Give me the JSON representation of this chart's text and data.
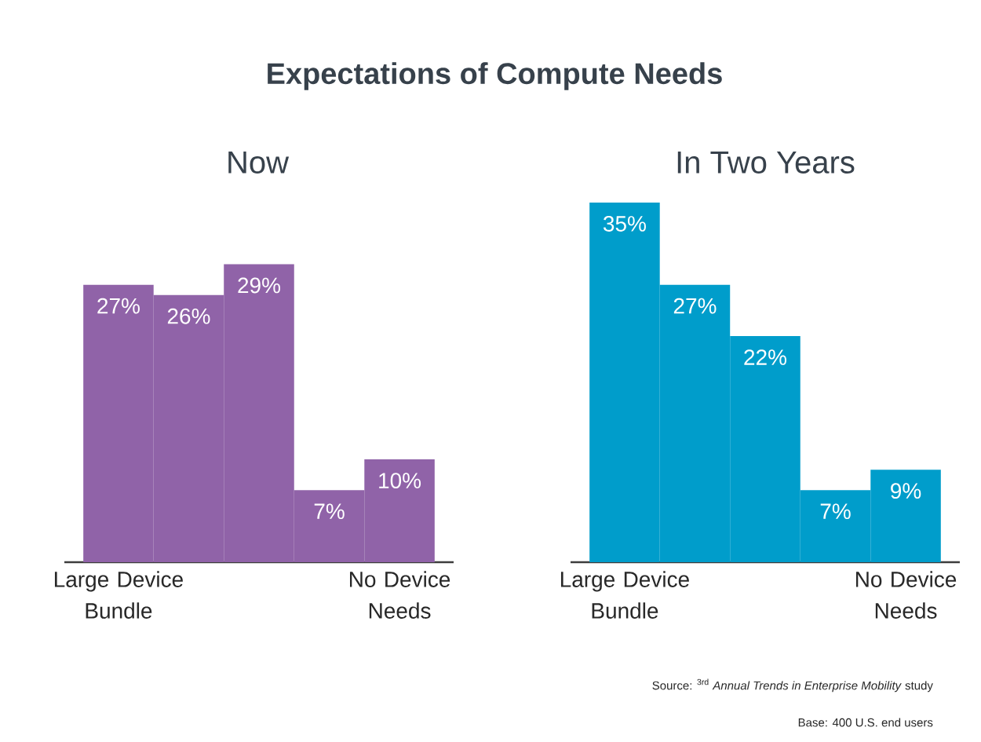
{
  "chart_data": [
    {
      "type": "bar",
      "title": "Expectations of Compute Needs",
      "subtitle": "Now",
      "categories": [
        "Large Device Bundle",
        null,
        null,
        null,
        "No Device Needs"
      ],
      "values": [
        27,
        26,
        29,
        7,
        10
      ],
      "value_labels": [
        "27%",
        "26%",
        "29%",
        "7%",
        "10%"
      ],
      "color": "#9063a8"
    },
    {
      "type": "bar",
      "subtitle": "In Two Years",
      "categories": [
        "Large Device Bundle",
        null,
        null,
        null,
        "No Device Needs"
      ],
      "values": [
        35,
        27,
        22,
        7,
        9
      ],
      "value_labels": [
        "35%",
        "27%",
        "22%",
        "7%",
        "9%"
      ],
      "color": "#009dcb",
      "annotations": [
        "Source: $^{3rd}$ *Annual Trends in Enterprise Mobility* study",
        "Base: 400 U.S. end users"
      ]
    }
  ]
}
